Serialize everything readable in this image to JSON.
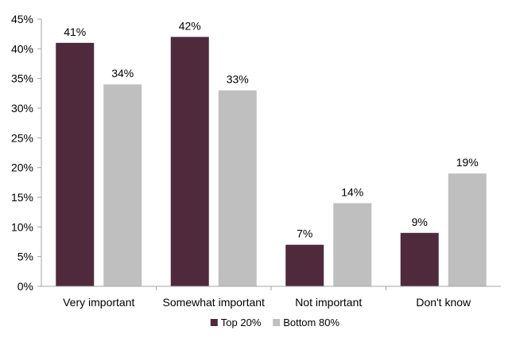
{
  "chart_data": {
    "type": "bar",
    "title": "",
    "xlabel": "",
    "ylabel": "",
    "categories": [
      "Very important",
      "Somewhat important",
      "Not important",
      "Don't know"
    ],
    "series": [
      {
        "name": "Top 20%",
        "values": [
          41,
          42,
          7,
          9
        ],
        "labels": [
          "41%",
          "42%",
          "7%",
          "9%"
        ],
        "color": "#4e2a3c"
      },
      {
        "name": "Bottom 80%",
        "values": [
          34,
          33,
          14,
          19
        ],
        "labels": [
          "34%",
          "33%",
          "14%",
          "19%"
        ],
        "color": "#bfbfbf"
      }
    ],
    "ylim": [
      0,
      45
    ],
    "yticks": [
      0,
      5,
      10,
      15,
      20,
      25,
      30,
      35,
      40,
      45
    ],
    "ytick_labels": [
      "0%",
      "5%",
      "10%",
      "15%",
      "20%",
      "25%",
      "30%",
      "35%",
      "40%",
      "45%"
    ],
    "grid": false,
    "legend_position": "bottom"
  },
  "legend": {
    "items": [
      {
        "label": "Top 20%",
        "color": "#4e2a3c"
      },
      {
        "label": "Bottom 80%",
        "color": "#bfbfbf"
      }
    ]
  },
  "colors": {
    "axis": "#a6a6a6"
  }
}
